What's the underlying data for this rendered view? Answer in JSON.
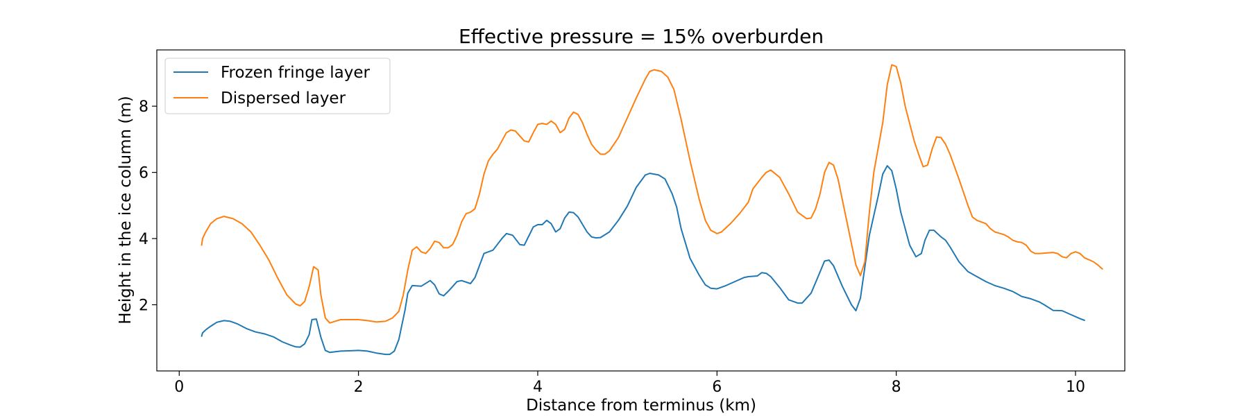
{
  "chart_data": {
    "type": "line",
    "title": "Effective pressure = 15% overburden",
    "xlabel": "Distance from terminus (km)",
    "ylabel": "Height in the ice column (m)",
    "xlim": [
      -0.25,
      10.55
    ],
    "ylim": [
      0.0,
      9.7
    ],
    "xticks": [
      0,
      2,
      4,
      6,
      8,
      10
    ],
    "yticks": [
      2,
      4,
      6,
      8
    ],
    "grid": false,
    "legend_position": "top-left",
    "series": [
      {
        "name": "Frozen fringe layer",
        "color": "#1f77b4",
        "points": [
          [
            0.25,
            1.05
          ],
          [
            0.26,
            1.15
          ],
          [
            0.3,
            1.25
          ],
          [
            0.35,
            1.35
          ],
          [
            0.42,
            1.47
          ],
          [
            0.5,
            1.52
          ],
          [
            0.57,
            1.5
          ],
          [
            0.65,
            1.42
          ],
          [
            0.75,
            1.28
          ],
          [
            0.85,
            1.18
          ],
          [
            0.95,
            1.12
          ],
          [
            1.05,
            1.03
          ],
          [
            1.15,
            0.88
          ],
          [
            1.25,
            0.77
          ],
          [
            1.3,
            0.73
          ],
          [
            1.35,
            0.72
          ],
          [
            1.4,
            0.82
          ],
          [
            1.45,
            1.1
          ],
          [
            1.48,
            1.55
          ],
          [
            1.53,
            1.57
          ],
          [
            1.58,
            1.02
          ],
          [
            1.63,
            0.62
          ],
          [
            1.68,
            0.56
          ],
          [
            1.8,
            0.6
          ],
          [
            2.0,
            0.62
          ],
          [
            2.1,
            0.6
          ],
          [
            2.2,
            0.54
          ],
          [
            2.3,
            0.5
          ],
          [
            2.35,
            0.5
          ],
          [
            2.4,
            0.6
          ],
          [
            2.45,
            0.95
          ],
          [
            2.52,
            1.85
          ],
          [
            2.55,
            2.35
          ],
          [
            2.6,
            2.58
          ],
          [
            2.7,
            2.56
          ],
          [
            2.8,
            2.73
          ],
          [
            2.85,
            2.6
          ],
          [
            2.9,
            2.33
          ],
          [
            2.95,
            2.27
          ],
          [
            3.0,
            2.4
          ],
          [
            3.1,
            2.7
          ],
          [
            3.15,
            2.73
          ],
          [
            3.25,
            2.64
          ],
          [
            3.3,
            2.82
          ],
          [
            3.4,
            3.55
          ],
          [
            3.5,
            3.65
          ],
          [
            3.6,
            4.0
          ],
          [
            3.65,
            4.15
          ],
          [
            3.72,
            4.1
          ],
          [
            3.8,
            3.82
          ],
          [
            3.85,
            3.8
          ],
          [
            3.95,
            4.35
          ],
          [
            4.0,
            4.42
          ],
          [
            4.05,
            4.42
          ],
          [
            4.1,
            4.55
          ],
          [
            4.15,
            4.45
          ],
          [
            4.2,
            4.2
          ],
          [
            4.25,
            4.3
          ],
          [
            4.3,
            4.62
          ],
          [
            4.35,
            4.8
          ],
          [
            4.4,
            4.78
          ],
          [
            4.45,
            4.65
          ],
          [
            4.55,
            4.2
          ],
          [
            4.6,
            4.05
          ],
          [
            4.65,
            4.02
          ],
          [
            4.7,
            4.03
          ],
          [
            4.8,
            4.2
          ],
          [
            4.9,
            4.55
          ],
          [
            5.0,
            4.98
          ],
          [
            5.1,
            5.55
          ],
          [
            5.2,
            5.92
          ],
          [
            5.25,
            5.97
          ],
          [
            5.35,
            5.92
          ],
          [
            5.42,
            5.8
          ],
          [
            5.5,
            5.35
          ],
          [
            5.55,
            4.95
          ],
          [
            5.6,
            4.3
          ],
          [
            5.7,
            3.4
          ],
          [
            5.8,
            2.9
          ],
          [
            5.87,
            2.6
          ],
          [
            5.93,
            2.5
          ],
          [
            6.0,
            2.48
          ],
          [
            6.1,
            2.58
          ],
          [
            6.2,
            2.7
          ],
          [
            6.3,
            2.82
          ],
          [
            6.35,
            2.85
          ],
          [
            6.45,
            2.87
          ],
          [
            6.5,
            2.97
          ],
          [
            6.55,
            2.95
          ],
          [
            6.6,
            2.85
          ],
          [
            6.7,
            2.52
          ],
          [
            6.8,
            2.15
          ],
          [
            6.9,
            2.05
          ],
          [
            6.95,
            2.05
          ],
          [
            7.05,
            2.35
          ],
          [
            7.12,
            2.8
          ],
          [
            7.2,
            3.32
          ],
          [
            7.25,
            3.35
          ],
          [
            7.3,
            3.18
          ],
          [
            7.4,
            2.55
          ],
          [
            7.5,
            2.0
          ],
          [
            7.55,
            1.82
          ],
          [
            7.6,
            2.2
          ],
          [
            7.7,
            4.1
          ],
          [
            7.8,
            5.3
          ],
          [
            7.85,
            5.95
          ],
          [
            7.9,
            6.2
          ],
          [
            7.95,
            6.05
          ],
          [
            8.0,
            5.5
          ],
          [
            8.05,
            4.8
          ],
          [
            8.15,
            3.8
          ],
          [
            8.22,
            3.45
          ],
          [
            8.28,
            3.55
          ],
          [
            8.32,
            3.95
          ],
          [
            8.37,
            4.25
          ],
          [
            8.42,
            4.25
          ],
          [
            8.5,
            4.05
          ],
          [
            8.55,
            3.95
          ],
          [
            8.6,
            3.75
          ],
          [
            8.7,
            3.3
          ],
          [
            8.8,
            3.0
          ],
          [
            8.9,
            2.85
          ],
          [
            9.0,
            2.7
          ],
          [
            9.1,
            2.58
          ],
          [
            9.2,
            2.5
          ],
          [
            9.3,
            2.4
          ],
          [
            9.4,
            2.25
          ],
          [
            9.5,
            2.18
          ],
          [
            9.6,
            2.08
          ],
          [
            9.65,
            2.0
          ],
          [
            9.75,
            1.83
          ],
          [
            9.85,
            1.82
          ],
          [
            9.95,
            1.7
          ],
          [
            10.05,
            1.58
          ],
          [
            10.1,
            1.53
          ]
        ]
      },
      {
        "name": "Dispersed layer",
        "color": "#ff7f0e",
        "points": [
          [
            0.25,
            3.8
          ],
          [
            0.26,
            4.0
          ],
          [
            0.3,
            4.22
          ],
          [
            0.35,
            4.45
          ],
          [
            0.42,
            4.6
          ],
          [
            0.5,
            4.67
          ],
          [
            0.6,
            4.6
          ],
          [
            0.7,
            4.45
          ],
          [
            0.8,
            4.2
          ],
          [
            0.9,
            3.8
          ],
          [
            1.0,
            3.35
          ],
          [
            1.1,
            2.8
          ],
          [
            1.2,
            2.3
          ],
          [
            1.3,
            2.02
          ],
          [
            1.35,
            1.97
          ],
          [
            1.4,
            2.1
          ],
          [
            1.45,
            2.55
          ],
          [
            1.5,
            3.15
          ],
          [
            1.55,
            3.05
          ],
          [
            1.58,
            2.3
          ],
          [
            1.63,
            1.6
          ],
          [
            1.68,
            1.45
          ],
          [
            1.8,
            1.55
          ],
          [
            2.0,
            1.55
          ],
          [
            2.1,
            1.52
          ],
          [
            2.2,
            1.48
          ],
          [
            2.3,
            1.5
          ],
          [
            2.38,
            1.6
          ],
          [
            2.45,
            1.8
          ],
          [
            2.5,
            2.3
          ],
          [
            2.55,
            3.05
          ],
          [
            2.6,
            3.65
          ],
          [
            2.65,
            3.75
          ],
          [
            2.7,
            3.6
          ],
          [
            2.75,
            3.55
          ],
          [
            2.8,
            3.7
          ],
          [
            2.85,
            3.92
          ],
          [
            2.9,
            3.88
          ],
          [
            2.95,
            3.72
          ],
          [
            3.0,
            3.72
          ],
          [
            3.05,
            3.82
          ],
          [
            3.1,
            4.1
          ],
          [
            3.15,
            4.5
          ],
          [
            3.2,
            4.75
          ],
          [
            3.25,
            4.8
          ],
          [
            3.3,
            4.9
          ],
          [
            3.35,
            5.35
          ],
          [
            3.4,
            5.95
          ],
          [
            3.45,
            6.35
          ],
          [
            3.5,
            6.55
          ],
          [
            3.55,
            6.7
          ],
          [
            3.6,
            6.95
          ],
          [
            3.65,
            7.2
          ],
          [
            3.7,
            7.28
          ],
          [
            3.75,
            7.25
          ],
          [
            3.8,
            7.1
          ],
          [
            3.85,
            6.95
          ],
          [
            3.9,
            6.92
          ],
          [
            3.95,
            7.2
          ],
          [
            4.0,
            7.45
          ],
          [
            4.05,
            7.48
          ],
          [
            4.1,
            7.45
          ],
          [
            4.15,
            7.55
          ],
          [
            4.2,
            7.45
          ],
          [
            4.25,
            7.2
          ],
          [
            4.3,
            7.3
          ],
          [
            4.35,
            7.65
          ],
          [
            4.4,
            7.82
          ],
          [
            4.45,
            7.75
          ],
          [
            4.5,
            7.5
          ],
          [
            4.55,
            7.15
          ],
          [
            4.6,
            6.85
          ],
          [
            4.65,
            6.68
          ],
          [
            4.7,
            6.55
          ],
          [
            4.75,
            6.55
          ],
          [
            4.8,
            6.65
          ],
          [
            4.9,
            7.05
          ],
          [
            5.0,
            7.65
          ],
          [
            5.1,
            8.25
          ],
          [
            5.2,
            8.82
          ],
          [
            5.25,
            9.05
          ],
          [
            5.3,
            9.1
          ],
          [
            5.38,
            9.05
          ],
          [
            5.45,
            8.88
          ],
          [
            5.52,
            8.5
          ],
          [
            5.6,
            7.6
          ],
          [
            5.7,
            6.35
          ],
          [
            5.8,
            5.2
          ],
          [
            5.87,
            4.55
          ],
          [
            5.93,
            4.25
          ],
          [
            6.0,
            4.15
          ],
          [
            6.05,
            4.2
          ],
          [
            6.15,
            4.45
          ],
          [
            6.25,
            4.75
          ],
          [
            6.35,
            5.1
          ],
          [
            6.4,
            5.5
          ],
          [
            6.5,
            5.85
          ],
          [
            6.55,
            6.0
          ],
          [
            6.6,
            6.07
          ],
          [
            6.7,
            5.85
          ],
          [
            6.8,
            5.35
          ],
          [
            6.9,
            4.8
          ],
          [
            7.0,
            4.6
          ],
          [
            7.05,
            4.62
          ],
          [
            7.1,
            4.9
          ],
          [
            7.15,
            5.35
          ],
          [
            7.2,
            6.0
          ],
          [
            7.25,
            6.3
          ],
          [
            7.3,
            6.22
          ],
          [
            7.35,
            5.8
          ],
          [
            7.45,
            4.5
          ],
          [
            7.55,
            3.2
          ],
          [
            7.6,
            2.88
          ],
          [
            7.65,
            3.3
          ],
          [
            7.7,
            4.8
          ],
          [
            7.75,
            6.0
          ],
          [
            7.85,
            7.5
          ],
          [
            7.9,
            8.65
          ],
          [
            7.95,
            9.25
          ],
          [
            8.0,
            9.2
          ],
          [
            8.05,
            8.7
          ],
          [
            8.1,
            8.0
          ],
          [
            8.2,
            6.95
          ],
          [
            8.25,
            6.55
          ],
          [
            8.3,
            6.17
          ],
          [
            8.35,
            6.22
          ],
          [
            8.4,
            6.7
          ],
          [
            8.45,
            7.07
          ],
          [
            8.5,
            7.05
          ],
          [
            8.55,
            6.85
          ],
          [
            8.6,
            6.55
          ],
          [
            8.7,
            5.8
          ],
          [
            8.8,
            5.0
          ],
          [
            8.85,
            4.65
          ],
          [
            8.9,
            4.55
          ],
          [
            9.0,
            4.45
          ],
          [
            9.05,
            4.3
          ],
          [
            9.1,
            4.2
          ],
          [
            9.2,
            4.12
          ],
          [
            9.25,
            4.05
          ],
          [
            9.3,
            3.95
          ],
          [
            9.35,
            3.9
          ],
          [
            9.4,
            3.88
          ],
          [
            9.45,
            3.8
          ],
          [
            9.5,
            3.62
          ],
          [
            9.55,
            3.55
          ],
          [
            9.6,
            3.55
          ],
          [
            9.7,
            3.57
          ],
          [
            9.75,
            3.58
          ],
          [
            9.8,
            3.55
          ],
          [
            9.85,
            3.45
          ],
          [
            9.9,
            3.42
          ],
          [
            9.95,
            3.55
          ],
          [
            10.0,
            3.6
          ],
          [
            10.05,
            3.55
          ],
          [
            10.1,
            3.42
          ],
          [
            10.2,
            3.3
          ],
          [
            10.25,
            3.2
          ],
          [
            10.3,
            3.08
          ]
        ]
      }
    ]
  }
}
